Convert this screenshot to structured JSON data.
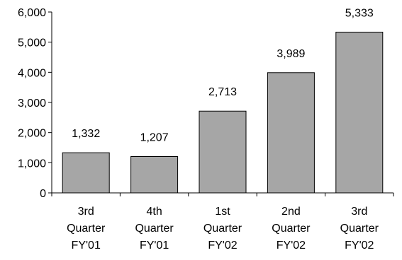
{
  "chart_data": {
    "type": "bar",
    "categories": [
      [
        "3rd",
        "Quarter",
        "FY'01"
      ],
      [
        "4th",
        "Quarter",
        "FY'01"
      ],
      [
        "1st",
        "Quarter",
        "FY'02"
      ],
      [
        "2nd",
        "Quarter",
        "FY'02"
      ],
      [
        "3rd",
        "Quarter",
        "FY'02"
      ]
    ],
    "values": [
      1332,
      1207,
      2713,
      3989,
      5333
    ],
    "value_labels": [
      "1,332",
      "1,207",
      "2,713",
      "3,989",
      "5,333"
    ],
    "title": "",
    "xlabel": "",
    "ylabel": "",
    "ylim": [
      0,
      6000
    ],
    "yticks": [
      0,
      1000,
      2000,
      3000,
      4000,
      5000,
      6000
    ],
    "ytick_labels": [
      "0",
      "1,000",
      "2,000",
      "3,000",
      "4,000",
      "5,000",
      "6,000"
    ],
    "grid": false,
    "legend": "none",
    "bar_color": "#a6a6a6",
    "bar_edge_color": "#000000"
  }
}
